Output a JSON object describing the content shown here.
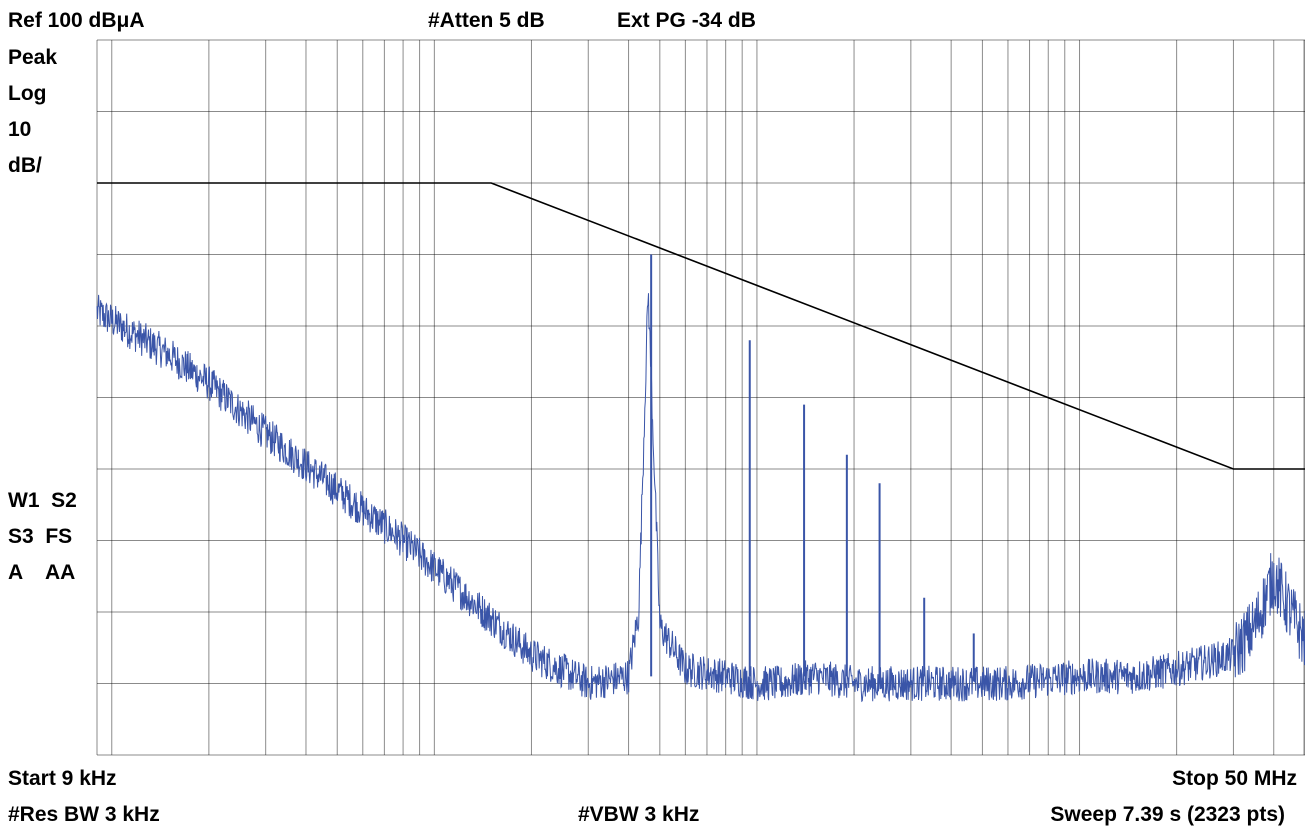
{
  "header": {
    "ref_level": "Ref 100 dBμA",
    "attenuation": "#Atten 5 dB",
    "ext_gain": "Ext PG -34 dB"
  },
  "left_panel": {
    "detector": "Peak",
    "scale_type": "Log",
    "scale_value": "10",
    "scale_unit": "dB/",
    "trace_row1": "W1  S2",
    "trace_row2": "S3  FS",
    "trace_row3": "A    AA"
  },
  "footer": {
    "start": "Start 9 kHz",
    "stop": "Stop 50 MHz",
    "res_bw": "#Res BW 3 kHz",
    "vbw": "#VBW 3 kHz",
    "sweep": "Sweep 7.39 s (2323 pts)"
  },
  "colors": {
    "trace": "#3a55a8",
    "limit": "#000000",
    "grid": "#000000"
  },
  "chart_data": {
    "type": "line",
    "x_scale": "log",
    "x_unit": "Hz",
    "y_unit": "dBμA",
    "xlim": [
      9000,
      50000000
    ],
    "ylim": [
      0,
      100
    ],
    "y_divisions": 10,
    "grid": true,
    "series": [
      {
        "role": "limit line",
        "x": [
          9000,
          150000,
          30000000,
          50000000
        ],
        "y": [
          80,
          80,
          40,
          40
        ]
      },
      {
        "role": "measured trace (approximate envelope)",
        "x": [
          9000,
          15000,
          20000,
          30000,
          50000,
          80000,
          120000,
          200000,
          300000,
          400000,
          430000,
          460000,
          500000,
          600000,
          800000,
          1000000,
          1200000,
          1500000,
          2000000,
          2500000,
          3000000,
          4000000,
          6000000,
          10000000,
          15000000,
          20000000,
          30000000,
          35000000,
          40000000,
          45000000,
          50000000
        ],
        "y": [
          62,
          56,
          52,
          45,
          37,
          30,
          23,
          14,
          10,
          11,
          20,
          65,
          18,
          12,
          11,
          10,
          10,
          11,
          10,
          10,
          10,
          10,
          10,
          11,
          11,
          12,
          14,
          18,
          25,
          20,
          16
        ]
      },
      {
        "role": "harmonic spikes",
        "x": [
          470000,
          950000,
          1400000,
          1900000,
          2400000,
          3300000,
          4700000
        ],
        "y": [
          70,
          58,
          49,
          42,
          38,
          22,
          17
        ]
      }
    ]
  }
}
